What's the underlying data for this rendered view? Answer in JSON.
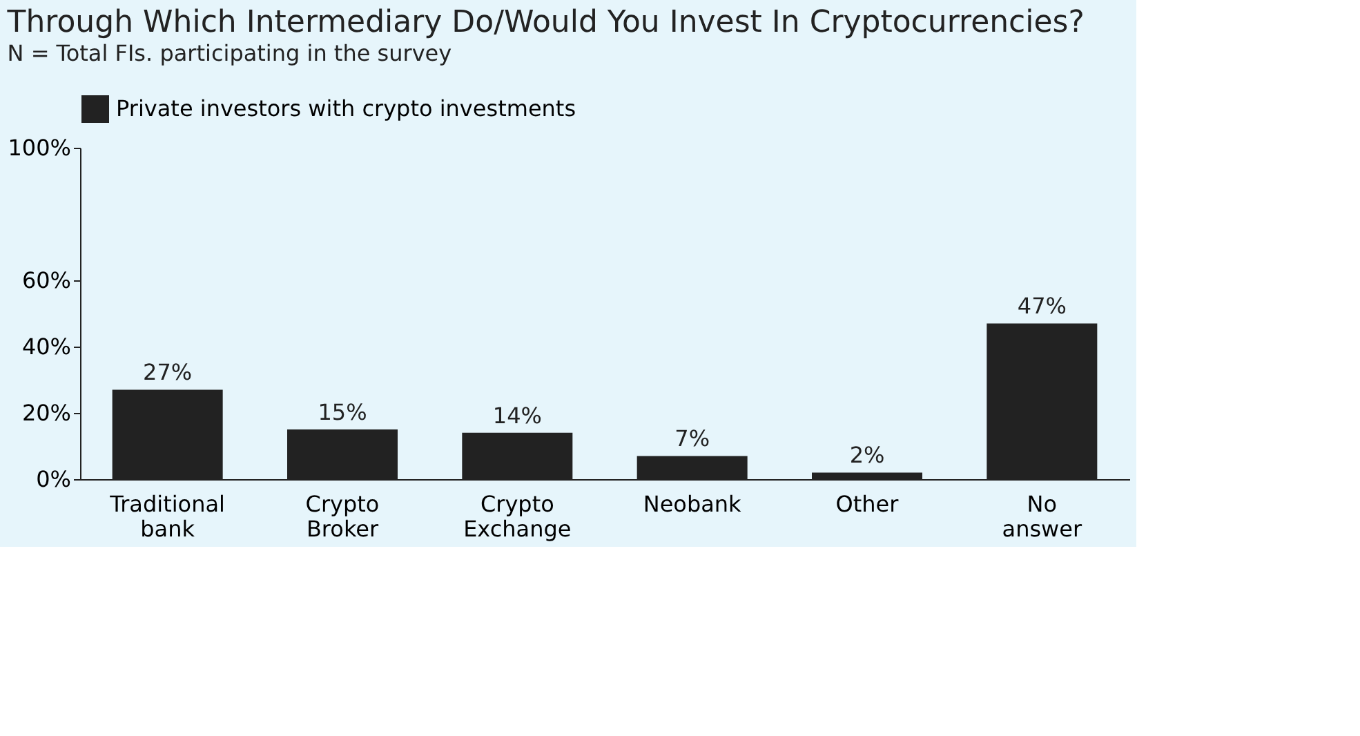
{
  "chart_data": {
    "type": "bar",
    "title": "Through Which Intermediary Do/Would You Invest In Cryptocurrencies?",
    "subtitle": "N = Total FIs. participating in the survey",
    "categories": [
      "Traditional bank",
      "Crypto Broker",
      "Crypto Exchange",
      "Neobank",
      "Other",
      "No answer"
    ],
    "series": [
      {
        "name": "Private investors with crypto investments",
        "color": "#222222",
        "values": [
          27,
          15,
          14,
          7,
          2,
          47
        ]
      }
    ],
    "value_labels": [
      "27%",
      "15%",
      "14%",
      "7%",
      "2%",
      "47%"
    ],
    "ylim": [
      0,
      100
    ],
    "yticks": [
      {
        "value": 0,
        "label": "0%"
      },
      {
        "value": 20,
        "label": "20%"
      },
      {
        "value": 40,
        "label": "40%"
      },
      {
        "value": 60,
        "label": "60%"
      },
      {
        "value": 100,
        "label": "100%"
      }
    ],
    "grid": false,
    "legend": "top"
  }
}
